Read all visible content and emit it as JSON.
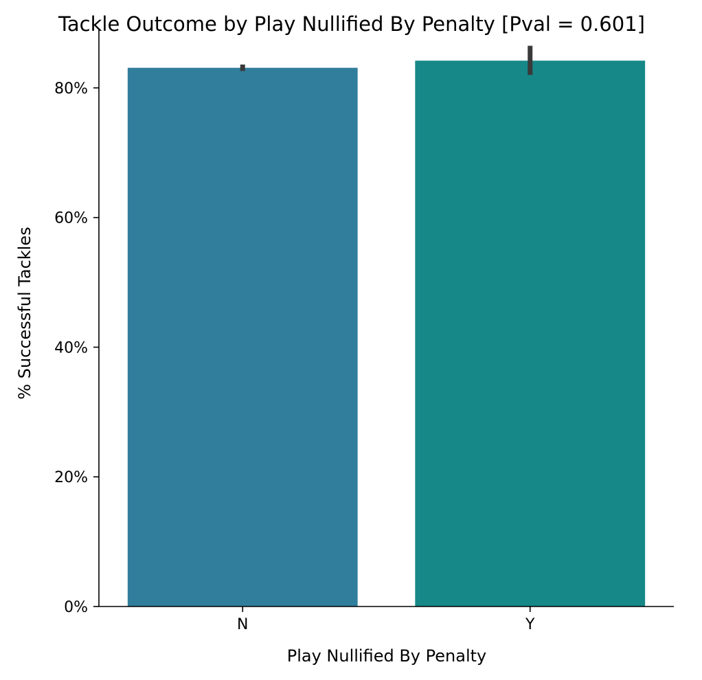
{
  "chart_data": {
    "type": "bar",
    "title": "Tackle Outcome by Play Nullified By Penalty [Pval = 0.601]",
    "xlabel": "Play Nullified By Penalty",
    "ylabel": "% Successful Tackles",
    "categories": [
      "N",
      "Y"
    ],
    "values": [
      0.831,
      0.842
    ],
    "error_bars": [
      {
        "low": 0.826,
        "high": 0.836
      },
      {
        "low": 0.82,
        "high": 0.865
      }
    ],
    "ylim": [
      0,
      0.89
    ],
    "yticks": [
      0,
      0.2,
      0.4,
      0.6,
      0.8
    ],
    "ytick_labels": [
      "0%",
      "20%",
      "40%",
      "60%",
      "80%"
    ],
    "grid": false,
    "legend": "none",
    "colors": {
      "bars": [
        "#317e9c",
        "#168888"
      ],
      "error_bar": "#3a3a3a",
      "axis": "#000000"
    }
  }
}
